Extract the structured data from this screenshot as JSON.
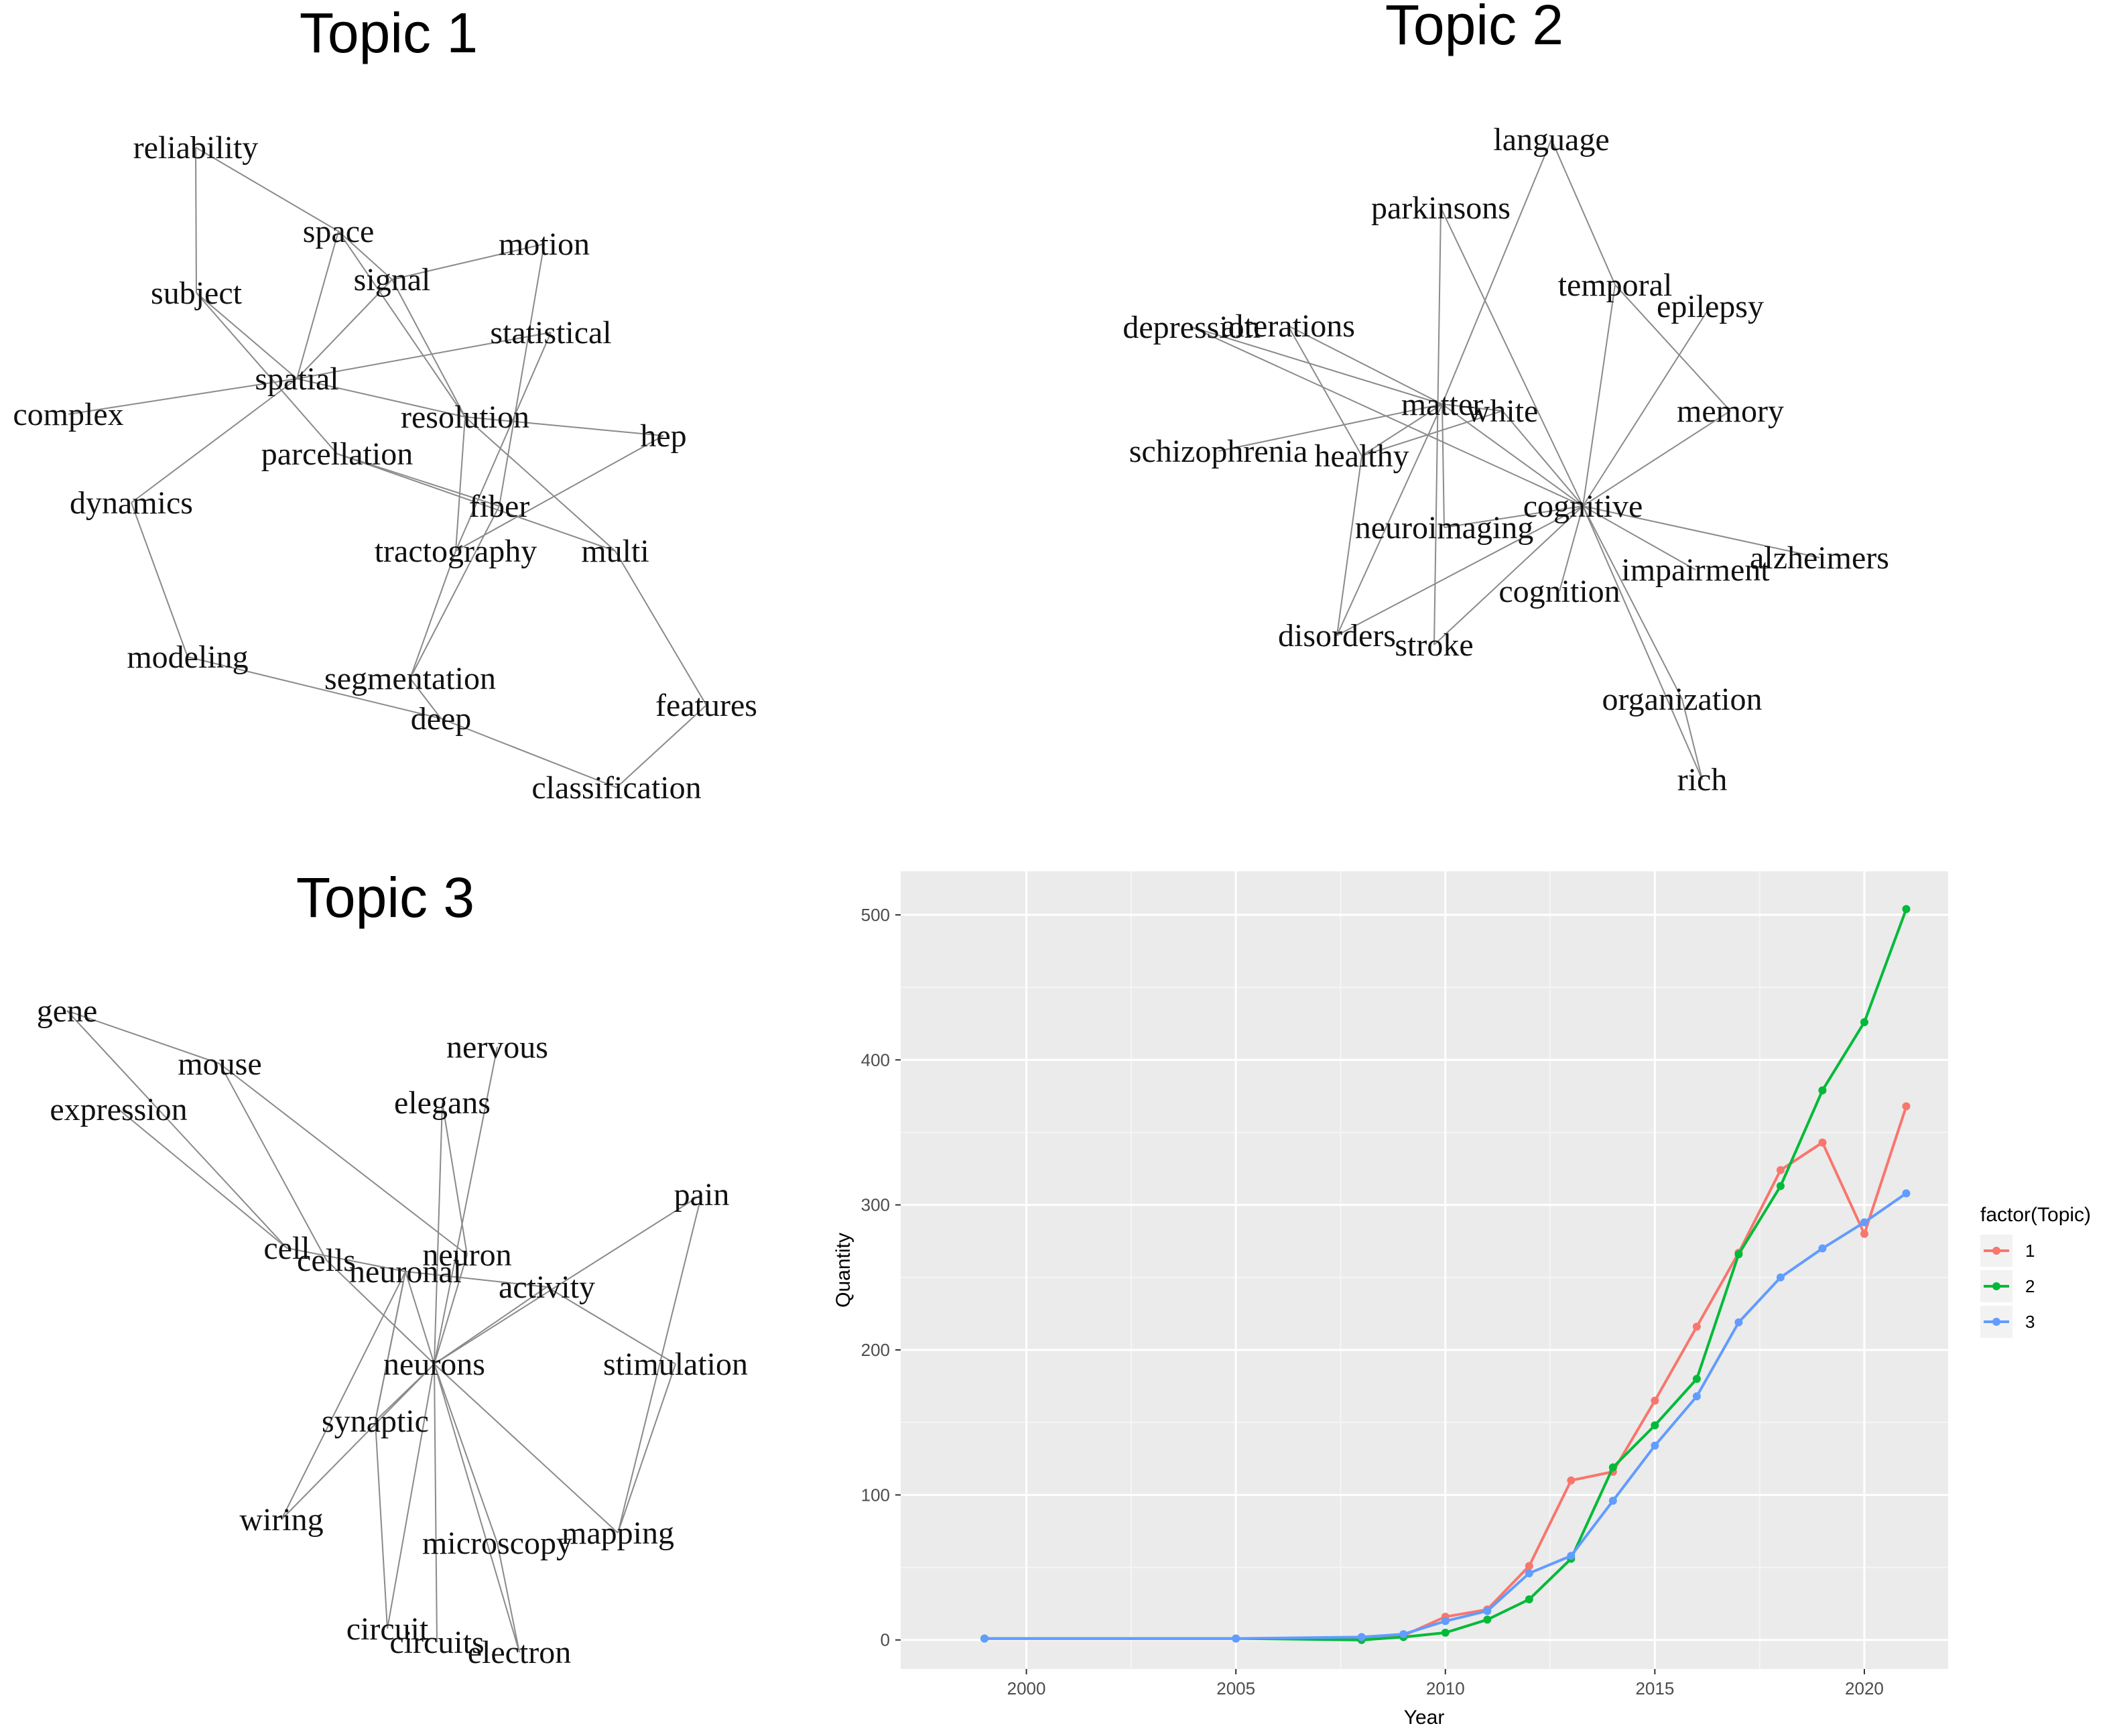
{
  "chart_data": [
    {
      "type": "network",
      "title": "Topic 1",
      "nodes": [
        "reliability",
        "space",
        "signal",
        "motion",
        "subject",
        "statistical",
        "spatial",
        "complex",
        "resolution",
        "hep",
        "parcellation",
        "dynamics",
        "fiber",
        "tractography",
        "multi",
        "modeling",
        "segmentation",
        "features",
        "deep",
        "classification"
      ],
      "edges": [
        [
          "reliability",
          "subject"
        ],
        [
          "reliability",
          "space"
        ],
        [
          "space",
          "spatial"
        ],
        [
          "space",
          "signal"
        ],
        [
          "space",
          "resolution"
        ],
        [
          "signal",
          "motion"
        ],
        [
          "signal",
          "spatial"
        ],
        [
          "signal",
          "resolution"
        ],
        [
          "subject",
          "spatial"
        ],
        [
          "subject",
          "parcellation"
        ],
        [
          "spatial",
          "complex"
        ],
        [
          "spatial",
          "statistical"
        ],
        [
          "spatial",
          "dynamics"
        ],
        [
          "spatial",
          "resolution"
        ],
        [
          "resolution",
          "hep"
        ],
        [
          "resolution",
          "multi"
        ],
        [
          "resolution",
          "tractography"
        ],
        [
          "parcellation",
          "fiber"
        ],
        [
          "parcellation",
          "multi"
        ],
        [
          "statistical",
          "tractography"
        ],
        [
          "motion",
          "fiber"
        ],
        [
          "hep",
          "tractography"
        ],
        [
          "dynamics",
          "modeling"
        ],
        [
          "modeling",
          "deep"
        ],
        [
          "segmentation",
          "deep"
        ],
        [
          "fiber",
          "segmentation"
        ],
        [
          "tractography",
          "segmentation"
        ],
        [
          "multi",
          "features"
        ],
        [
          "deep",
          "classification"
        ],
        [
          "features",
          "classification"
        ]
      ]
    },
    {
      "type": "network",
      "title": "Topic 2",
      "nodes": [
        "language",
        "parkinsons",
        "temporal",
        "epilepsy",
        "depression",
        "alterations",
        "matter",
        "white",
        "memory",
        "schizophrenia",
        "healthy",
        "cognitive",
        "neuroimaging",
        "alzheimers",
        "impairment",
        "cognition",
        "disorders",
        "stroke",
        "organization",
        "rich"
      ],
      "edges": [
        [
          "language",
          "matter"
        ],
        [
          "language",
          "temporal"
        ],
        [
          "temporal",
          "memory"
        ],
        [
          "temporal",
          "cognitive"
        ],
        [
          "parkinsons",
          "cognitive"
        ],
        [
          "parkinsons",
          "stroke"
        ],
        [
          "depression",
          "matter"
        ],
        [
          "depression",
          "cognitive"
        ],
        [
          "alterations",
          "healthy"
        ],
        [
          "alterations",
          "matter"
        ],
        [
          "matter",
          "white"
        ],
        [
          "matter",
          "schizophrenia"
        ],
        [
          "matter",
          "healthy"
        ],
        [
          "matter",
          "neuroimaging"
        ],
        [
          "matter",
          "disorders"
        ],
        [
          "matter",
          "cognitive"
        ],
        [
          "white",
          "cognitive"
        ],
        [
          "white",
          "healthy"
        ],
        [
          "healthy",
          "disorders"
        ],
        [
          "epilepsy",
          "cognitive"
        ],
        [
          "cognitive",
          "neuroimaging"
        ],
        [
          "cognitive",
          "alzheimers"
        ],
        [
          "cognitive",
          "impairment"
        ],
        [
          "cognitive",
          "cognition"
        ],
        [
          "cognitive",
          "disorders"
        ],
        [
          "cognitive",
          "stroke"
        ],
        [
          "cognitive",
          "organization"
        ],
        [
          "cognitive",
          "rich"
        ],
        [
          "memory",
          "cognitive"
        ],
        [
          "organization",
          "rich"
        ]
      ]
    },
    {
      "type": "network",
      "title": "Topic 3",
      "nodes": [
        "gene",
        "mouse",
        "nervous",
        "expression",
        "elegans",
        "pain",
        "cell",
        "cells",
        "neuron",
        "neuronal",
        "activity",
        "neurons",
        "stimulation",
        "synaptic",
        "wiring",
        "microscopy",
        "mapping",
        "circuit",
        "circuits",
        "electron"
      ],
      "edges": [
        [
          "gene",
          "mouse"
        ],
        [
          "gene",
          "cell"
        ],
        [
          "mouse",
          "neuron"
        ],
        [
          "mouse",
          "cells"
        ],
        [
          "expression",
          "cell"
        ],
        [
          "elegans",
          "neurons"
        ],
        [
          "elegans",
          "neuron"
        ],
        [
          "nervous",
          "neurons"
        ],
        [
          "pain",
          "neurons"
        ],
        [
          "pain",
          "mapping"
        ],
        [
          "cell",
          "neuronal"
        ],
        [
          "cells",
          "neurons"
        ],
        [
          "neuron",
          "neurons"
        ],
        [
          "neuronal",
          "neurons"
        ],
        [
          "neuronal",
          "wiring"
        ],
        [
          "neuronal",
          "activity"
        ],
        [
          "activity",
          "neurons"
        ],
        [
          "activity",
          "stimulation"
        ],
        [
          "neurons",
          "synaptic"
        ],
        [
          "neurons",
          "wiring"
        ],
        [
          "neurons",
          "microscopy"
        ],
        [
          "neurons",
          "mapping"
        ],
        [
          "neurons",
          "circuit"
        ],
        [
          "neurons",
          "circuits"
        ],
        [
          "neurons",
          "electron"
        ],
        [
          "synaptic",
          "circuit"
        ],
        [
          "synaptic",
          "neuronal"
        ],
        [
          "microscopy",
          "electron"
        ],
        [
          "stimulation",
          "mapping"
        ],
        [
          "neuronal",
          "synaptic"
        ]
      ]
    },
    {
      "type": "line",
      "title": "",
      "xlabel": "Year",
      "ylabel": "Quantity",
      "xlim": [
        1997,
        2022
      ],
      "ylim": [
        -20,
        530
      ],
      "xticks": [
        2000,
        2005,
        2010,
        2015,
        2020
      ],
      "yticks": [
        0,
        100,
        200,
        300,
        400,
        500
      ],
      "grid": true,
      "legend_title": "factor(Topic)",
      "legend_position": "right",
      "series": [
        {
          "name": "1",
          "color": "#F8766D",
          "x": [
            1999,
            2005,
            2008,
            2009,
            2010,
            2011,
            2012,
            2013,
            2014,
            2015,
            2016,
            2017,
            2018,
            2019,
            2020,
            2021
          ],
          "y": [
            1,
            1,
            1,
            3,
            16,
            21,
            51,
            110,
            116,
            165,
            216,
            267,
            324,
            343,
            280,
            368
          ]
        },
        {
          "name": "2",
          "color": "#00BA38",
          "x": [
            1999,
            2005,
            2008,
            2009,
            2010,
            2011,
            2012,
            2013,
            2014,
            2015,
            2016,
            2017,
            2018,
            2019,
            2020,
            2021
          ],
          "y": [
            1,
            1,
            0,
            2,
            5,
            14,
            28,
            56,
            119,
            148,
            180,
            266,
            313,
            379,
            426,
            504
          ]
        },
        {
          "name": "3",
          "color": "#619CFF",
          "x": [
            1999,
            2005,
            2008,
            2009,
            2010,
            2011,
            2012,
            2013,
            2014,
            2015,
            2016,
            2017,
            2018,
            2019,
            2020,
            2021
          ],
          "y": [
            1,
            1,
            2,
            4,
            13,
            20,
            46,
            58,
            96,
            134,
            168,
            219,
            250,
            270,
            288,
            308
          ]
        }
      ]
    }
  ]
}
